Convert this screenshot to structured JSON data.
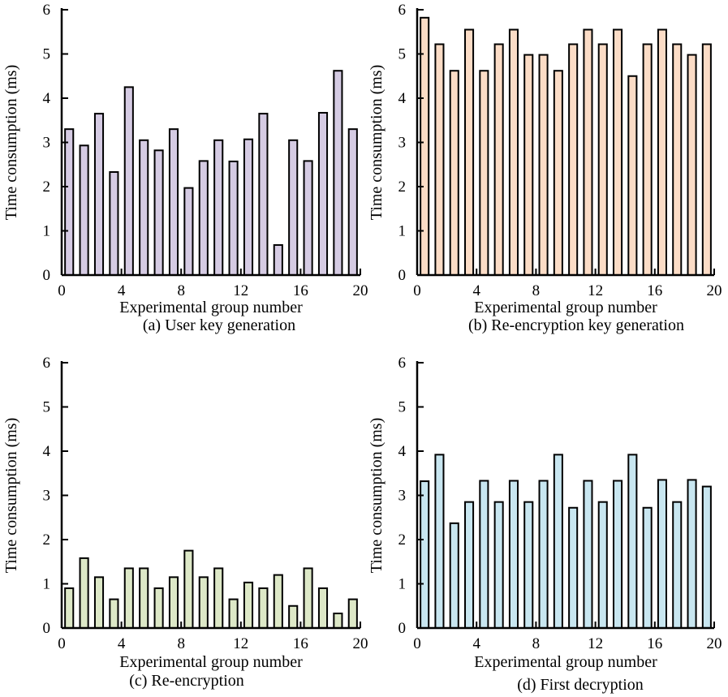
{
  "chart_data": [
    {
      "type": "bar",
      "caption": "(a) User key generation",
      "xlabel": "Experimental group number",
      "ylabel": "Time consumption (ms)",
      "xlim": [
        0,
        20
      ],
      "ylim": [
        0,
        6
      ],
      "x_ticks": [
        0,
        4,
        8,
        12,
        16,
        20
      ],
      "y_ticks": [
        0,
        1,
        2,
        3,
        4,
        5,
        6
      ],
      "fill_color": "#d5cbe3",
      "x": [
        1,
        2,
        3,
        4,
        5,
        6,
        7,
        8,
        9,
        10,
        11,
        12,
        13,
        14,
        15,
        16,
        17,
        18,
        19,
        20
      ],
      "values": [
        3.3,
        2.93,
        3.65,
        2.33,
        4.25,
        3.05,
        2.82,
        3.3,
        1.97,
        2.58,
        3.05,
        2.57,
        3.07,
        3.65,
        0.68,
        3.05,
        2.58,
        3.67,
        4.62,
        3.3
      ]
    },
    {
      "type": "bar",
      "caption": "(b) Re-encryption key generation",
      "xlabel": "Experimental group number",
      "ylabel": "Time consumption (ms)",
      "xlim": [
        0,
        20
      ],
      "ylim": [
        0,
        6
      ],
      "x_ticks": [
        0,
        4,
        8,
        12,
        16,
        20
      ],
      "y_ticks": [
        0,
        1,
        2,
        3,
        4,
        5,
        6
      ],
      "fill_color": "#fbdcc6",
      "x": [
        1,
        2,
        3,
        4,
        5,
        6,
        7,
        8,
        9,
        10,
        11,
        12,
        13,
        14,
        15,
        16,
        17,
        18,
        19,
        20
      ],
      "values": [
        5.82,
        5.22,
        4.62,
        5.55,
        4.62,
        5.22,
        5.55,
        4.98,
        4.98,
        4.62,
        5.22,
        5.55,
        5.22,
        5.55,
        4.5,
        5.22,
        5.55,
        5.22,
        4.98,
        5.22
      ]
    },
    {
      "type": "bar",
      "caption": "(c) Re-encryption",
      "xlabel": "Experimental group number",
      "ylabel": "Time consumption (ms)",
      "xlim": [
        0,
        20
      ],
      "ylim": [
        0,
        6
      ],
      "x_ticks": [
        0,
        4,
        8,
        12,
        16,
        20
      ],
      "y_ticks": [
        0,
        1,
        2,
        3,
        4,
        5,
        6
      ],
      "fill_color": "#dde8c7",
      "x": [
        1,
        2,
        3,
        4,
        5,
        6,
        7,
        8,
        9,
        10,
        11,
        12,
        13,
        14,
        15,
        16,
        17,
        18,
        19,
        20
      ],
      "values": [
        0.9,
        1.58,
        1.15,
        0.65,
        1.35,
        1.35,
        0.9,
        1.15,
        1.75,
        1.15,
        1.35,
        0.65,
        1.03,
        0.9,
        1.2,
        0.5,
        1.35,
        0.9,
        0.33,
        0.65
      ]
    },
    {
      "type": "bar",
      "caption": "(d) First decryption",
      "xlabel": "Experimental group number",
      "ylabel": "Time consumption (ms)",
      "xlim": [
        0,
        20
      ],
      "ylim": [
        0,
        6
      ],
      "x_ticks": [
        0,
        4,
        8,
        12,
        16,
        20
      ],
      "y_ticks": [
        0,
        1,
        2,
        3,
        4,
        5,
        6
      ],
      "fill_color": "#c8e6f0",
      "x": [
        1,
        2,
        3,
        4,
        5,
        6,
        7,
        8,
        9,
        10,
        11,
        12,
        13,
        14,
        15,
        16,
        17,
        18,
        19,
        20
      ],
      "values": [
        3.32,
        3.92,
        2.37,
        2.85,
        3.33,
        2.85,
        3.33,
        2.85,
        3.33,
        3.92,
        2.72,
        3.33,
        2.85,
        3.33,
        3.92,
        2.72,
        3.35,
        2.85,
        3.35,
        3.2
      ]
    }
  ]
}
